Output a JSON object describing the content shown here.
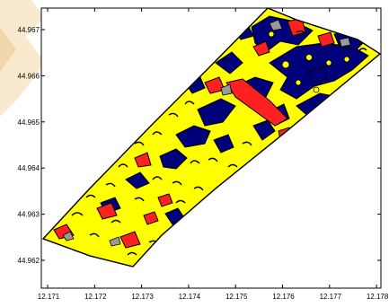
{
  "map": {
    "y_ticks": [
      "44.967",
      "44.966",
      "44.965",
      "44.964",
      "44.963",
      "44.962"
    ],
    "x_ticks": [
      "12.171",
      "12.172",
      "12.173",
      "12.174",
      "12.175",
      "12.176",
      "12.177",
      "12.178"
    ],
    "colors": {
      "background": "#ffffff",
      "frame": "#000000",
      "class_yellow": "#ffff00",
      "class_blue": "#00007a",
      "class_red": "#ff2020",
      "class_grey": "#9a9a9a",
      "watermark": "#f3d8a8"
    }
  }
}
